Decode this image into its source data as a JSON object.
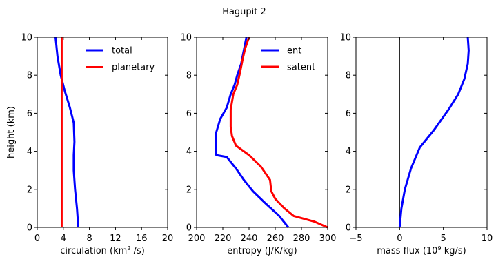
{
  "figure": {
    "title": "Hagupit 2"
  },
  "chart_data": [
    {
      "type": "line",
      "xlabel": "circulation (km",
      "xlabel_sup": "2",
      "xlabel_tail": " /s)",
      "ylabel": "height (km)",
      "xlim": [
        0,
        20
      ],
      "ylim": [
        0,
        10
      ],
      "xticks": [
        0,
        4,
        8,
        12,
        16,
        20
      ],
      "yticks": [
        0,
        2,
        4,
        6,
        8,
        10
      ],
      "legend": "top-right",
      "series": [
        {
          "name": "total",
          "color": "#0000ff",
          "x": [
            6.3,
            6.1,
            5.8,
            5.6,
            5.6,
            5.7,
            5.6,
            5.0,
            4.2,
            3.6,
            3.1,
            2.8
          ],
          "y": [
            0,
            1,
            2,
            3,
            3.8,
            4.5,
            5.5,
            6.3,
            7.2,
            8,
            9,
            10
          ]
        },
        {
          "name": "planetary",
          "color": "#ff0000",
          "x": [
            3.8,
            3.8
          ],
          "y": [
            0,
            10
          ]
        }
      ]
    },
    {
      "type": "line",
      "xlabel": "entropy (J/K/kg)",
      "xlim": [
        200,
        300
      ],
      "ylim": [
        0,
        10
      ],
      "xticks": [
        200,
        220,
        240,
        260,
        280,
        300
      ],
      "yticks": [
        0,
        2,
        4,
        6,
        8,
        10
      ],
      "legend": "top-right",
      "series": [
        {
          "name": "ent",
          "color": "#0000ff",
          "x": [
            270,
            263,
            252,
            243,
            236,
            230,
            223,
            215,
            215,
            215,
            218,
            223,
            226,
            229,
            231,
            234,
            236,
            238
          ],
          "y": [
            0,
            0.6,
            1.3,
            1.9,
            2.5,
            3.1,
            3.7,
            3.8,
            4.5,
            5.0,
            5.7,
            6.3,
            7.0,
            7.5,
            8.0,
            8.6,
            9.3,
            10
          ]
        },
        {
          "name": "satent",
          "color": "#ff0000",
          "x": [
            300,
            290,
            274,
            267,
            260,
            257,
            256,
            249,
            240,
            230,
            227,
            226,
            226,
            228,
            231,
            233,
            235,
            237,
            240
          ],
          "y": [
            0,
            0.3,
            0.6,
            1.0,
            1.5,
            1.9,
            2.5,
            3.2,
            3.8,
            4.3,
            4.8,
            5.3,
            6.2,
            7.0,
            7.5,
            8.1,
            8.8,
            9.4,
            10
          ]
        }
      ]
    },
    {
      "type": "line",
      "xlabel": "mass flux (10",
      "xlabel_sup": "9",
      "xlabel_tail": "  kg/s)",
      "xlim": [
        -5,
        10
      ],
      "ylim": [
        0,
        10
      ],
      "xticks": [
        -5,
        0,
        5,
        10
      ],
      "yticks": [
        0,
        2,
        4,
        6,
        8,
        10
      ],
      "series": [
        {
          "name": "",
          "color": "#0000ff",
          "x": [
            0,
            0.2,
            0.6,
            1.3,
            2.3,
            3.9,
            5.6,
            6.7,
            7.4,
            7.8,
            7.9,
            7.8
          ],
          "y": [
            0,
            1,
            2,
            3.1,
            4.2,
            5.1,
            6.2,
            7.0,
            7.8,
            8.6,
            9.3,
            10
          ]
        }
      ]
    }
  ]
}
